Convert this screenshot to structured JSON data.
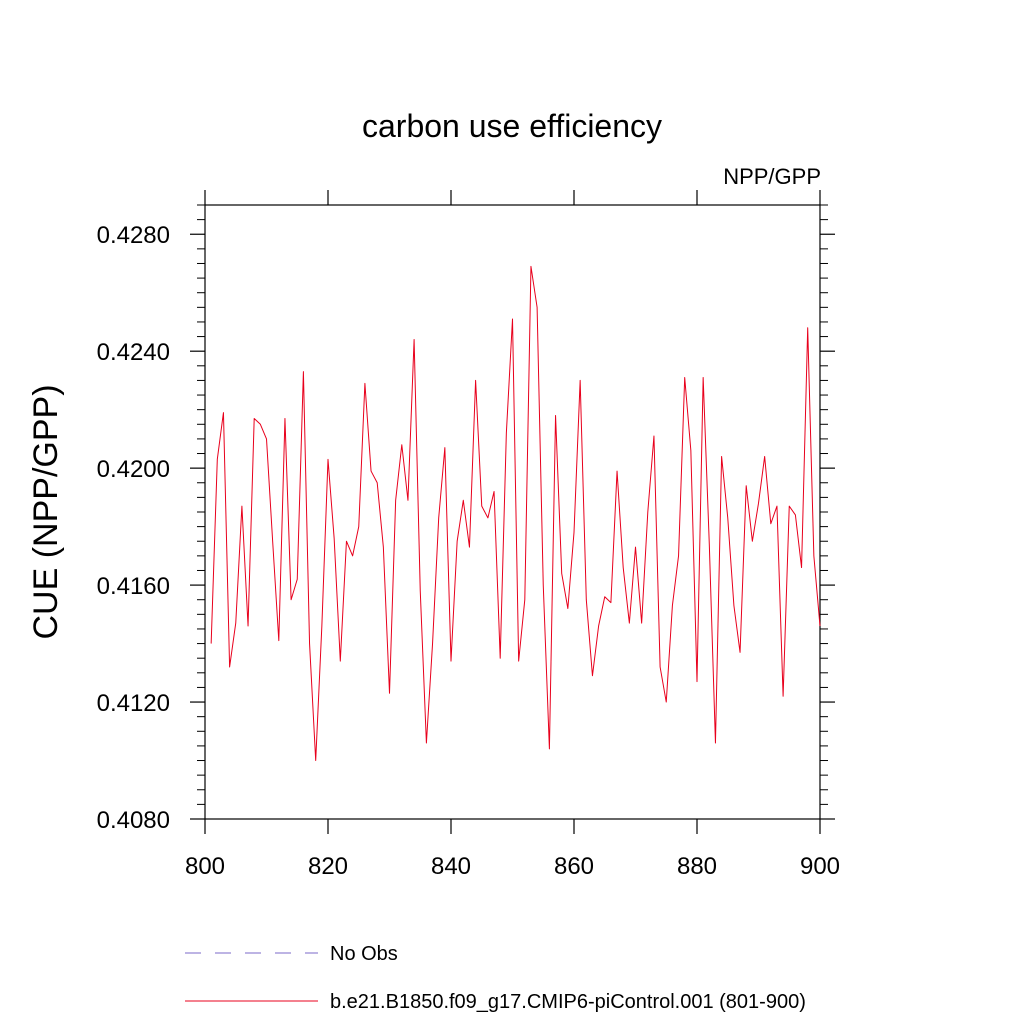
{
  "chart_data": {
    "type": "line",
    "title": "carbon use efficiency",
    "subtitle": "NPP/GPP",
    "xlabel": "",
    "ylabel": "CUE  (NPP/GPP)",
    "xlim": [
      800,
      900
    ],
    "ylim": [
      0.408,
      0.429
    ],
    "x_ticks": [
      800,
      820,
      840,
      860,
      880,
      900
    ],
    "x_tick_labels": [
      "800",
      "820",
      "840",
      "860",
      "880",
      "900"
    ],
    "y_ticks": [
      0.408,
      0.412,
      0.416,
      0.42,
      0.424,
      0.428
    ],
    "y_tick_labels": [
      "0.4080",
      "0.4120",
      "0.4160",
      "0.4200",
      "0.4240",
      "0.4280"
    ],
    "grid": false,
    "legend_position": "bottom",
    "legend": [
      {
        "label": "No Obs",
        "color": "#7b68c8",
        "style": "dashed"
      },
      {
        "label": "b.e21.B1850.f09_g17.CMIP6-piControl.001 (801-900)",
        "color": "#e8001c",
        "style": "solid"
      }
    ],
    "series": [
      {
        "name": "b.e21.B1850.f09_g17.CMIP6-piControl.001 (801-900)",
        "color": "#e8001c",
        "x": [
          801,
          802,
          803,
          804,
          805,
          806,
          807,
          808,
          809,
          810,
          811,
          812,
          813,
          814,
          815,
          816,
          817,
          818,
          819,
          820,
          821,
          822,
          823,
          824,
          825,
          826,
          827,
          828,
          829,
          830,
          831,
          832,
          833,
          834,
          835,
          836,
          837,
          838,
          839,
          840,
          841,
          842,
          843,
          844,
          845,
          846,
          847,
          848,
          849,
          850,
          851,
          852,
          853,
          854,
          855,
          856,
          857,
          858,
          859,
          860,
          861,
          862,
          863,
          864,
          865,
          866,
          867,
          868,
          869,
          870,
          871,
          872,
          873,
          874,
          875,
          876,
          877,
          878,
          879,
          880,
          881,
          882,
          883,
          884,
          885,
          886,
          887,
          888,
          889,
          890,
          891,
          892,
          893,
          894,
          895,
          896,
          897,
          898,
          899,
          900
        ],
        "values": [
          0.414,
          0.4203,
          0.4219,
          0.4132,
          0.4147,
          0.4187,
          0.4146,
          0.4217,
          0.4215,
          0.421,
          0.4175,
          0.4141,
          0.4217,
          0.4155,
          0.4162,
          0.4233,
          0.414,
          0.41,
          0.4146,
          0.4203,
          0.4176,
          0.4134,
          0.4175,
          0.417,
          0.418,
          0.4229,
          0.4199,
          0.4195,
          0.4173,
          0.4123,
          0.4189,
          0.4208,
          0.4189,
          0.4244,
          0.4158,
          0.4106,
          0.414,
          0.4183,
          0.4207,
          0.4134,
          0.4175,
          0.4189,
          0.4173,
          0.423,
          0.4187,
          0.4183,
          0.4192,
          0.4135,
          0.4212,
          0.4251,
          0.4134,
          0.4155,
          0.4269,
          0.4255,
          0.416,
          0.4104,
          0.4218,
          0.4164,
          0.4152,
          0.4178,
          0.423,
          0.4155,
          0.4129,
          0.4146,
          0.4156,
          0.4154,
          0.4199,
          0.4166,
          0.4147,
          0.4173,
          0.4147,
          0.4185,
          0.4211,
          0.4132,
          0.412,
          0.4153,
          0.417,
          0.4231,
          0.4206,
          0.4127,
          0.4231,
          0.4174,
          0.4106,
          0.4204,
          0.4183,
          0.4153,
          0.4137,
          0.4194,
          0.4175,
          0.4188,
          0.4204,
          0.4181,
          0.4187,
          0.4122,
          0.4187,
          0.4184,
          0.4166,
          0.4248,
          0.417,
          0.4146
        ]
      }
    ]
  }
}
